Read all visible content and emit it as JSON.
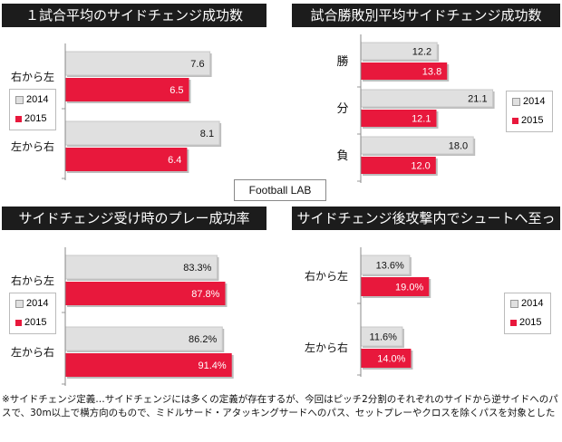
{
  "brand": "Football LAB",
  "footnote": "※サイドチェンジ定義…サイドチェンジには多くの定義が存在するが、今回はピッチ2分割のそれぞれのサイドから逆サイドへのパスで、30m以上で横方向のもので、ミドルサード・アタッキングサードへのパス、セットプレーやクロスを除くパスを対象とした",
  "colors": {
    "s2014": "#e0e0e0",
    "s2015": "#e8183c"
  },
  "chart_data": [
    {
      "type": "bar",
      "title": "１試合平均のサイドチェンジ成功数",
      "categories": [
        "右から左",
        "左から右"
      ],
      "series": [
        {
          "name": "2014",
          "values": [
            7.6,
            8.1
          ],
          "labels": [
            "7.6",
            "8.1"
          ]
        },
        {
          "name": "2015",
          "values": [
            6.5,
            6.4
          ],
          "labels": [
            "6.5",
            "6.4"
          ]
        }
      ]
    },
    {
      "type": "bar",
      "title": "試合勝敗別平均サイドチェンジ成功数",
      "categories": [
        "勝",
        "分",
        "負"
      ],
      "series": [
        {
          "name": "2014",
          "values": [
            12.2,
            21.1,
            18.0
          ],
          "labels": [
            "12.2",
            "21.1",
            "18.0"
          ]
        },
        {
          "name": "2015",
          "values": [
            13.8,
            12.1,
            12.0
          ],
          "labels": [
            "13.8",
            "12.1",
            "12.0"
          ]
        }
      ]
    },
    {
      "type": "bar",
      "title": "サイドチェンジ受け時のプレー成功率",
      "categories": [
        "右から左",
        "左から右"
      ],
      "series": [
        {
          "name": "2014",
          "values": [
            83.3,
            86.2
          ],
          "labels": [
            "83.3%",
            "86.2%"
          ]
        },
        {
          "name": "2015",
          "values": [
            87.8,
            91.4
          ],
          "labels": [
            "87.8%",
            "91.4%"
          ]
        }
      ]
    },
    {
      "type": "bar",
      "title": "サイドチェンジ後攻撃内でシュートへ至った割合",
      "categories": [
        "右から左",
        "左から右"
      ],
      "series": [
        {
          "name": "2014",
          "values": [
            13.6,
            11.6
          ],
          "labels": [
            "13.6%",
            "11.6%"
          ]
        },
        {
          "name": "2015",
          "values": [
            19.0,
            14.0
          ],
          "labels": [
            "19.0%",
            "14.0%"
          ]
        }
      ]
    }
  ]
}
